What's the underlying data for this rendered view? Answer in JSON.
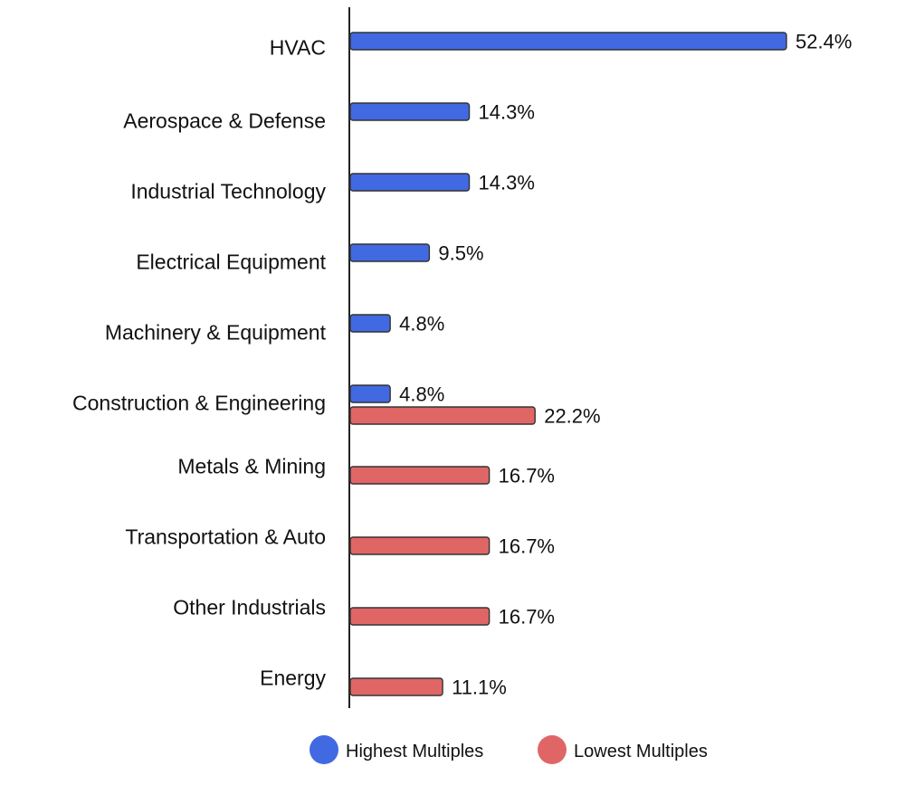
{
  "chart_data": {
    "type": "bar",
    "orientation": "horizontal",
    "categories": [
      "HVAC",
      "Aerospace & Defense",
      "Industrial Technology",
      "Electrical Equipment",
      "Machinery & Equipment",
      "Construction & Engineering",
      "Metals & Mining",
      "Transportation & Auto",
      "Other Industrials",
      "Energy"
    ],
    "series": [
      {
        "name": "Highest Multiples",
        "color": "#4169E1",
        "values": [
          52.4,
          14.3,
          14.3,
          9.5,
          4.8,
          4.8,
          null,
          null,
          null,
          null
        ],
        "labels": [
          "52.4%",
          "14.3%",
          "14.3%",
          "9.5%",
          "4.8%",
          "4.8%",
          null,
          null,
          null,
          null
        ]
      },
      {
        "name": "Lowest Multiples",
        "color": "#E06666",
        "values": [
          null,
          null,
          null,
          null,
          null,
          22.2,
          16.7,
          16.7,
          16.7,
          11.1
        ],
        "labels": [
          null,
          null,
          null,
          null,
          null,
          "22.2%",
          "16.7%",
          "16.7%",
          "16.7%",
          "11.1%"
        ]
      }
    ],
    "value_unit": "%",
    "xlim": [
      0,
      60
    ],
    "grid": false,
    "legend": "bottom-center"
  }
}
